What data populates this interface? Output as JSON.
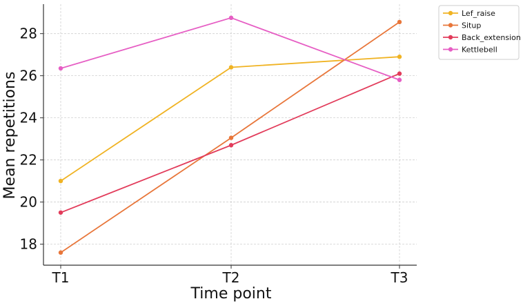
{
  "chart_data": {
    "type": "line",
    "xlabel": "Time point",
    "ylabel": "Mean repetitions",
    "categories": [
      "T1",
      "T2",
      "T3"
    ],
    "ylim": [
      17,
      29.4
    ],
    "yticks": [
      18,
      20,
      22,
      24,
      26,
      28
    ],
    "grid": true,
    "legend_position": "top-right",
    "series": [
      {
        "name": "Lef_raise",
        "color": "#f0b323",
        "values": [
          21.0,
          26.4,
          26.9
        ]
      },
      {
        "name": "Situp",
        "color": "#e8763a",
        "values": [
          17.6,
          23.05,
          28.55
        ]
      },
      {
        "name": "Back_extension",
        "color": "#e23c5b",
        "values": [
          19.5,
          22.7,
          26.1
        ]
      },
      {
        "name": "Kettlebell",
        "color": "#e65ec4",
        "values": [
          26.35,
          28.75,
          25.8
        ]
      }
    ]
  }
}
